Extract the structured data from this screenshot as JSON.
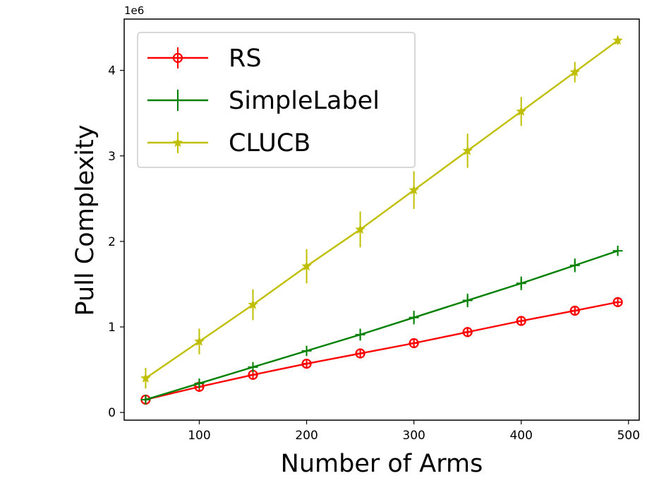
{
  "chart_data": {
    "type": "line",
    "xlabel": "Number of Arms",
    "ylabel": "Pull Complexity",
    "offset_label": "1e6",
    "x": [
      50,
      100,
      150,
      200,
      250,
      300,
      350,
      400,
      450,
      490
    ],
    "xlim": [
      30,
      510
    ],
    "ylim": [
      -0.09,
      4.6
    ],
    "x_ticks": [
      100,
      200,
      300,
      400,
      500
    ],
    "y_ticks": [
      0,
      1,
      2,
      3,
      4
    ],
    "legend_position": "upper-left",
    "grid": false,
    "series": [
      {
        "name": "RS",
        "color": "#ff0000",
        "marker": "circle-plus",
        "values": [
          0.15,
          0.3,
          0.44,
          0.57,
          0.69,
          0.81,
          0.94,
          1.07,
          1.19,
          1.29
        ],
        "errors": [
          0.03,
          0.04,
          0.04,
          0.05,
          0.05,
          0.05,
          0.05,
          0.05,
          0.05,
          0.04
        ]
      },
      {
        "name": "SimpleLabel",
        "color": "#008000",
        "marker": "plus",
        "values": [
          0.15,
          0.34,
          0.53,
          0.72,
          0.91,
          1.11,
          1.31,
          1.51,
          1.72,
          1.89
        ],
        "errors": [
          0.04,
          0.05,
          0.06,
          0.06,
          0.07,
          0.08,
          0.08,
          0.08,
          0.08,
          0.06
        ]
      },
      {
        "name": "CLUCB",
        "color": "#bfbf00",
        "marker": "star",
        "values": [
          0.4,
          0.83,
          1.26,
          1.71,
          2.14,
          2.6,
          3.06,
          3.52,
          3.98,
          4.35
        ],
        "errors": [
          0.12,
          0.15,
          0.18,
          0.2,
          0.21,
          0.22,
          0.2,
          0.17,
          0.12,
          0.05
        ]
      }
    ]
  }
}
